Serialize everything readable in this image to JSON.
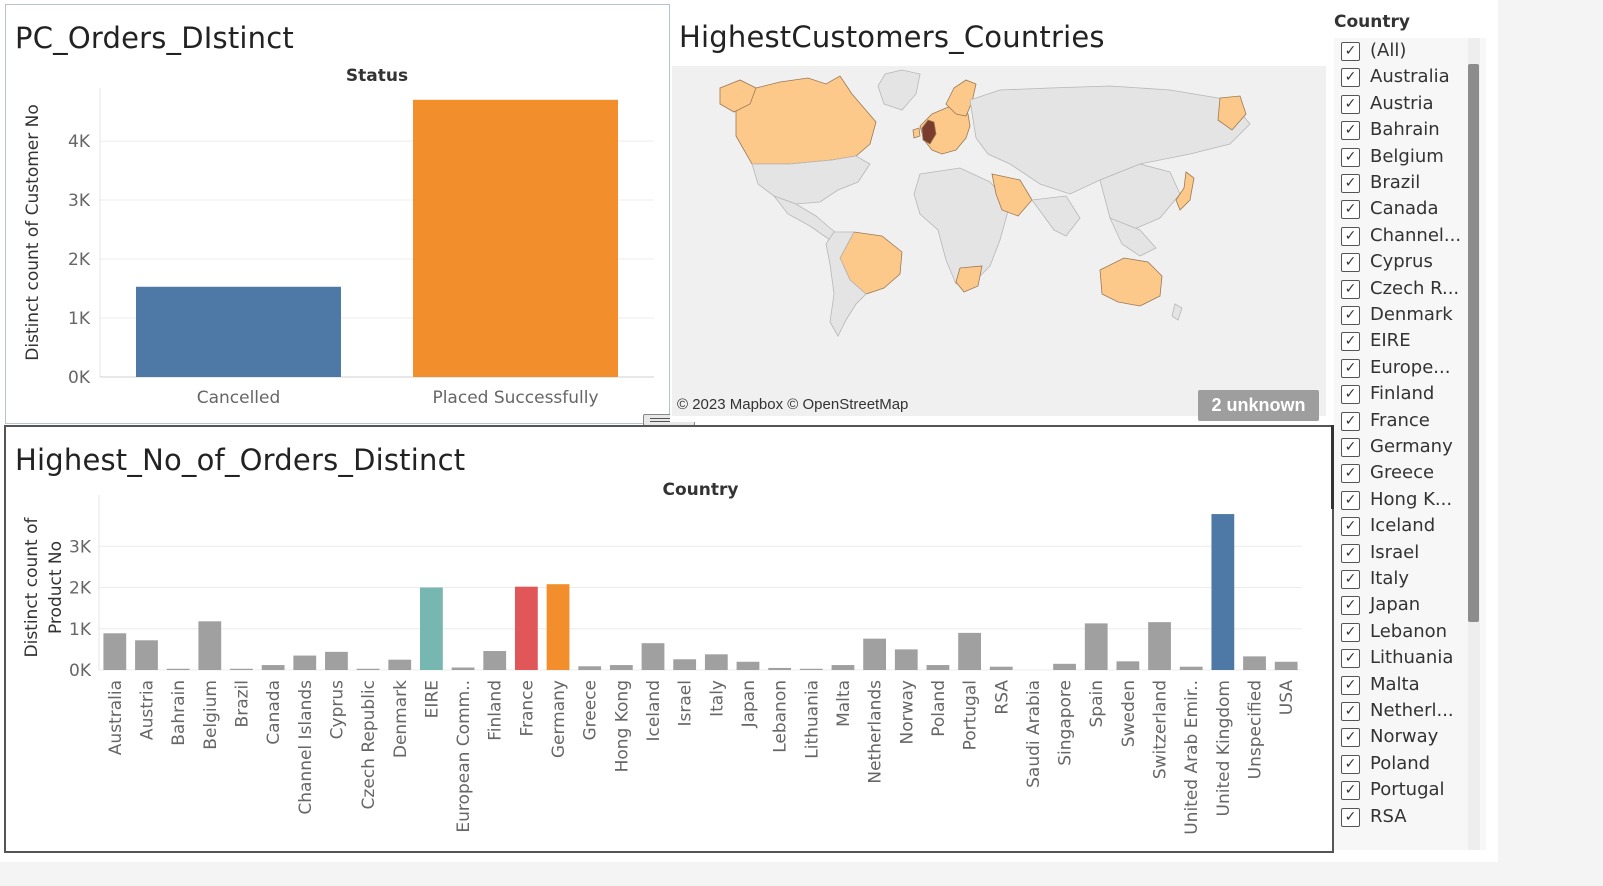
{
  "dashboard": {
    "sheets": [
      {
        "title": "PC_Orders_DIstinct",
        "chart_data": {
          "type": "bar",
          "title": "",
          "column_header": "Status",
          "ylabel": "Distinct count of Customer No",
          "categories": [
            "Cancelled",
            "Placed Successfully"
          ],
          "values": [
            1530,
            4700
          ],
          "colors": [
            "#4e79a7",
            "#f28e2b"
          ],
          "ylim": [
            0,
            4900
          ],
          "yticks": [
            0,
            1000,
            2000,
            3000,
            4000
          ],
          "ytick_labels": [
            "0K",
            "1K",
            "2K",
            "3K",
            "4K"
          ],
          "grid": true
        }
      },
      {
        "title": "HighestCustomers_Countries",
        "map": {
          "highlight_color": "#fdc98a",
          "top_color": "#7a3c2c",
          "land_color": "#e4e4e4",
          "attribution": "© 2023 Mapbox © OpenStreetMap",
          "unknown_badge": "2 unknown"
        }
      },
      {
        "title": "Highest_No_of_Orders_Distinct",
        "chart_data": {
          "type": "bar",
          "title": "",
          "column_header": "Country",
          "ylabel": "Distinct count of Product No",
          "ylabel_lines": [
            "Distinct count of",
            "Product No"
          ],
          "categories": [
            "Australia",
            "Austria",
            "Bahrain",
            "Belgium",
            "Brazil",
            "Canada",
            "Channel Islands",
            "Cyprus",
            "Czech Republic",
            "Denmark",
            "EIRE",
            "European Comm..",
            "Finland",
            "France",
            "Germany",
            "Greece",
            "Hong Kong",
            "Iceland",
            "Israel",
            "Italy",
            "Japan",
            "Lebanon",
            "Lithuania",
            "Malta",
            "Netherlands",
            "Norway",
            "Poland",
            "Portugal",
            "RSA",
            "Saudi Arabia",
            "Singapore",
            "Spain",
            "Sweden",
            "Switzerland",
            "United Arab Emir..",
            "United Kingdom",
            "Unspecified",
            "USA"
          ],
          "values": [
            890,
            720,
            30,
            1180,
            30,
            120,
            350,
            440,
            30,
            250,
            2000,
            60,
            460,
            2020,
            2080,
            90,
            120,
            650,
            260,
            380,
            200,
            50,
            30,
            120,
            760,
            500,
            120,
            900,
            80,
            0,
            150,
            1130,
            210,
            1160,
            80,
            3780,
            330,
            200
          ],
          "colors": {
            "default": "#a0a0a0",
            "EIRE": "#76b7b2",
            "France": "#e15759",
            "Germany": "#f28e2b",
            "United Kingdom": "#4e79a7"
          },
          "ylim": [
            0,
            4000
          ],
          "yticks": [
            0,
            1000,
            2000,
            3000
          ],
          "ytick_labels": [
            "0K",
            "1K",
            "2K",
            "3K"
          ],
          "grid": true
        }
      }
    ],
    "filter": {
      "title": "Country",
      "items": [
        "(All)",
        "Australia",
        "Austria",
        "Bahrain",
        "Belgium",
        "Brazil",
        "Canada",
        "Channel...",
        "Cyprus",
        "Czech R...",
        "Denmark",
        "EIRE",
        "Europe...",
        "Finland",
        "France",
        "Germany",
        "Greece",
        "Hong K...",
        "Iceland",
        "Israel",
        "Italy",
        "Japan",
        "Lebanon",
        "Lithuania",
        "Malta",
        "Netherl...",
        "Norway",
        "Poland",
        "Portugal",
        "RSA"
      ],
      "checkmark": "✓"
    },
    "toolbar": {
      "buttons": [
        {
          "name": "close-icon",
          "glyph": "✕"
        },
        {
          "name": "open-external-icon",
          "glyph": "⧉"
        },
        {
          "name": "filter-icon",
          "glyph": "⏷"
        },
        {
          "name": "dropdown-arrow-icon",
          "glyph": "▾"
        }
      ]
    }
  }
}
